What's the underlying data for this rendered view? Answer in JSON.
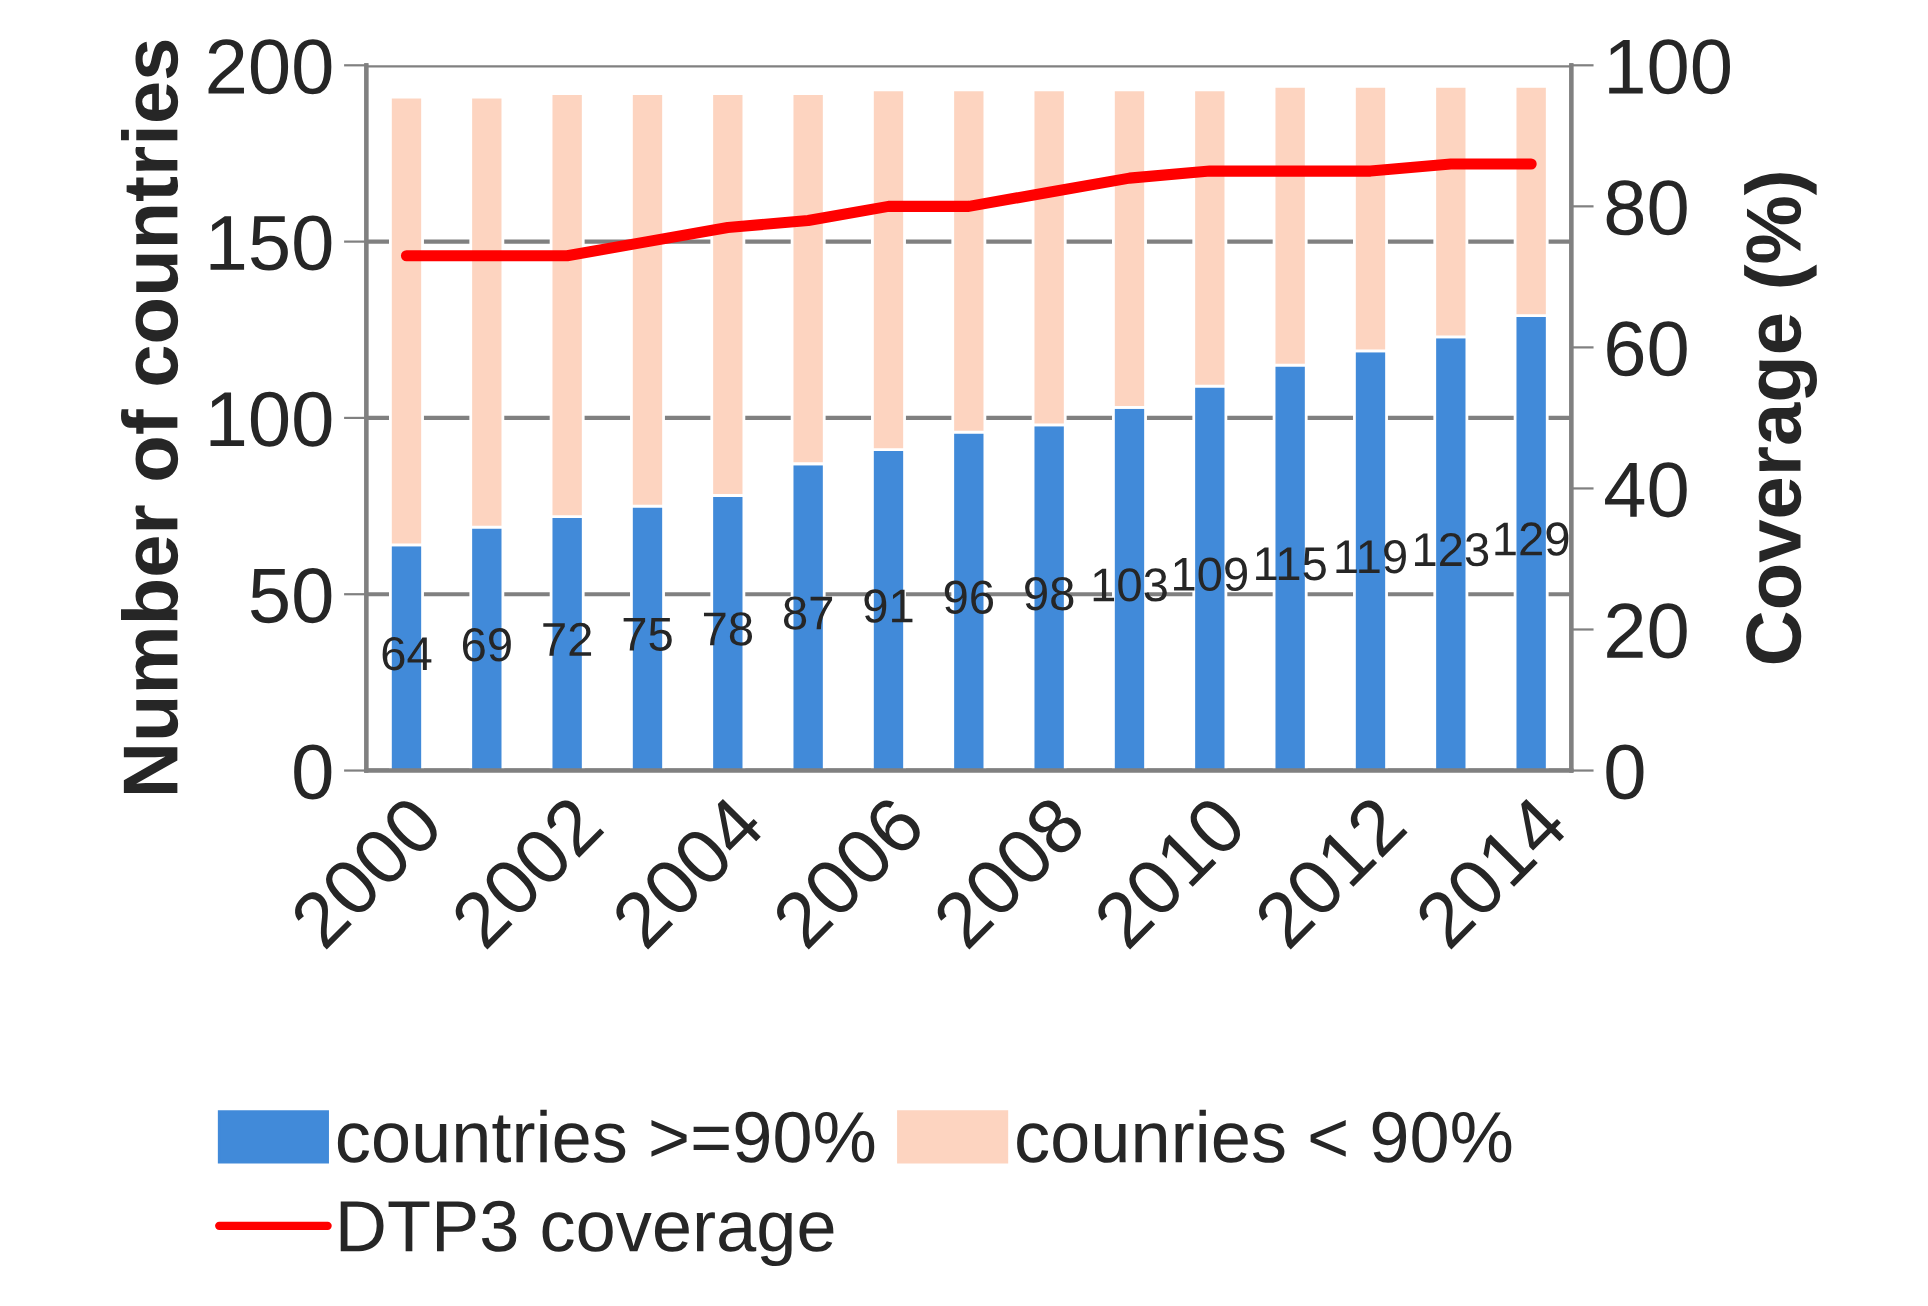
{
  "chart_data": {
    "type": "bar",
    "stacked": true,
    "categories": [
      "2000",
      null,
      "2002",
      null,
      "2004",
      null,
      "2006",
      null,
      "2008",
      null,
      "2010",
      null,
      "2012",
      null,
      "2014"
    ],
    "series": [
      {
        "name": "countries >=90%",
        "color": "#418ad9",
        "values": [
          64,
          69,
          72,
          75,
          78,
          87,
          91,
          96,
          98,
          103,
          109,
          115,
          119,
          123,
          129
        ],
        "data_labels": true
      },
      {
        "name": "counries < 90%",
        "color": "#fdd4c0",
        "values": [
          127,
          122,
          120,
          117,
          114,
          105,
          102,
          97,
          95,
          90,
          84,
          79,
          75,
          71,
          65
        ]
      },
      {
        "name": "DTP3 coverage",
        "type": "line",
        "axis": "y2",
        "color": "#ff0000",
        "values": [
          73,
          73,
          73,
          75,
          77,
          78,
          80,
          80,
          82,
          84,
          85,
          85,
          85,
          86,
          86
        ]
      }
    ],
    "ylabel": "Number of countries",
    "y2label": "Coverage (%)",
    "ylim": [
      0,
      200
    ],
    "yticks": [
      0,
      50,
      100,
      150,
      200
    ],
    "y2lim": [
      0,
      100
    ],
    "y2ticks": [
      0,
      20,
      40,
      60,
      80,
      100
    ],
    "grid": "y",
    "legend": "bottom",
    "marker": "none"
  }
}
